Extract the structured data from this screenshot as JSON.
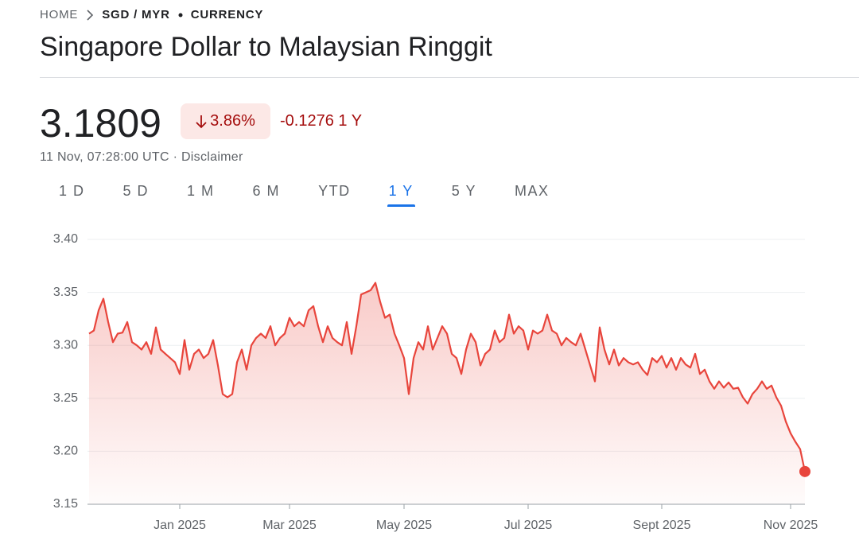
{
  "header": {
    "breadcrumb": [
      "HOME",
      "SGD / MYR",
      "CURRENCY"
    ],
    "title": "Singapore Dollar to Malaysian Ringgit",
    "price": "3.1809",
    "change_percent": "3.86%",
    "change_absolute": "-0.1276",
    "change_period": "1 Y",
    "timestamp": "11 Nov, 07:28:00 UTC",
    "disclaimer": "Disclaimer",
    "tabs": [
      "1 D",
      "5 D",
      "1 M",
      "6 M",
      "YTD",
      "1 Y",
      "5 Y",
      "MAX"
    ],
    "selected_tab": 5
  },
  "chart_data": {
    "type": "line",
    "color": "#e8453c",
    "grid": true,
    "ylim": [
      3.15,
      3.4
    ],
    "yticks": [
      {
        "value": 3.4,
        "label": "3.40"
      },
      3.35,
      {
        "value": 3.3,
        "label": "3.30"
      },
      3.25,
      {
        "value": 3.2,
        "label": "3.20"
      },
      3.15
    ],
    "categories": [
      null,
      null,
      null,
      null,
      null,
      null,
      null,
      null,
      null,
      null,
      null,
      null,
      null,
      null,
      null,
      null,
      null,
      null,
      null,
      "Jan 2025",
      null,
      null,
      null,
      null,
      null,
      null,
      null,
      null,
      null,
      null,
      null,
      null,
      null,
      null,
      null,
      null,
      null,
      null,
      null,
      null,
      null,
      null,
      "Mar 2025",
      null,
      null,
      null,
      null,
      null,
      null,
      null,
      null,
      null,
      null,
      null,
      null,
      null,
      null,
      null,
      null,
      null,
      null,
      null,
      null,
      null,
      null,
      null,
      "May 2025",
      null,
      null,
      null,
      null,
      null,
      null,
      null,
      null,
      null,
      null,
      null,
      null,
      null,
      null,
      null,
      null,
      null,
      null,
      null,
      null,
      null,
      null,
      null,
      null,
      null,
      "Jul 2025",
      null,
      null,
      null,
      null,
      null,
      null,
      null,
      null,
      null,
      null,
      null,
      null,
      null,
      null,
      null,
      null,
      null,
      null,
      null,
      null,
      null,
      null,
      null,
      null,
      null,
      null,
      null,
      "Sept 2025",
      null,
      null,
      null,
      null,
      null,
      null,
      null,
      null,
      null,
      null,
      null,
      null,
      null,
      null,
      null,
      null,
      null,
      null,
      null,
      null,
      null,
      null,
      null,
      null,
      null,
      null,
      "Nov 2025",
      null,
      null,
      null
    ],
    "values": [
      3.311,
      3.314,
      3.333,
      3.344,
      3.322,
      3.303,
      3.311,
      3.312,
      3.322,
      3.303,
      3.3,
      3.296,
      3.303,
      3.292,
      3.317,
      3.296,
      3.292,
      3.288,
      3.284,
      3.273,
      3.305,
      3.277,
      3.292,
      3.296,
      3.288,
      3.292,
      3.305,
      3.281,
      3.254,
      3.251,
      3.254,
      3.284,
      3.296,
      3.277,
      3.3,
      3.307,
      3.311,
      3.307,
      3.318,
      3.3,
      3.307,
      3.311,
      3.326,
      3.318,
      3.322,
      3.318,
      3.333,
      3.337,
      3.318,
      3.303,
      3.318,
      3.307,
      3.303,
      3.3,
      3.322,
      3.292,
      3.318,
      3.348,
      3.35,
      3.352,
      3.359,
      3.341,
      3.326,
      3.329,
      3.311,
      3.3,
      3.288,
      3.254,
      3.288,
      3.303,
      3.296,
      3.318,
      3.296,
      3.307,
      3.318,
      3.311,
      3.292,
      3.288,
      3.273,
      3.296,
      3.311,
      3.303,
      3.281,
      3.292,
      3.296,
      3.314,
      3.303,
      3.307,
      3.329,
      3.311,
      3.318,
      3.314,
      3.296,
      3.314,
      3.311,
      3.314,
      3.329,
      3.314,
      3.311,
      3.3,
      3.307,
      3.303,
      3.3,
      3.311,
      3.296,
      3.281,
      3.266,
      3.317,
      3.296,
      3.282,
      3.296,
      3.281,
      3.288,
      3.284,
      3.282,
      3.284,
      3.277,
      3.272,
      3.288,
      3.284,
      3.29,
      3.279,
      3.288,
      3.277,
      3.288,
      3.282,
      3.279,
      3.292,
      3.273,
      3.277,
      3.266,
      3.259,
      3.266,
      3.26,
      3.265,
      3.259,
      3.26,
      3.251,
      3.245,
      3.254,
      3.259,
      3.266,
      3.259,
      3.262,
      3.251,
      3.243,
      3.228,
      3.217,
      3.209,
      3.202,
      3.1809
    ]
  }
}
